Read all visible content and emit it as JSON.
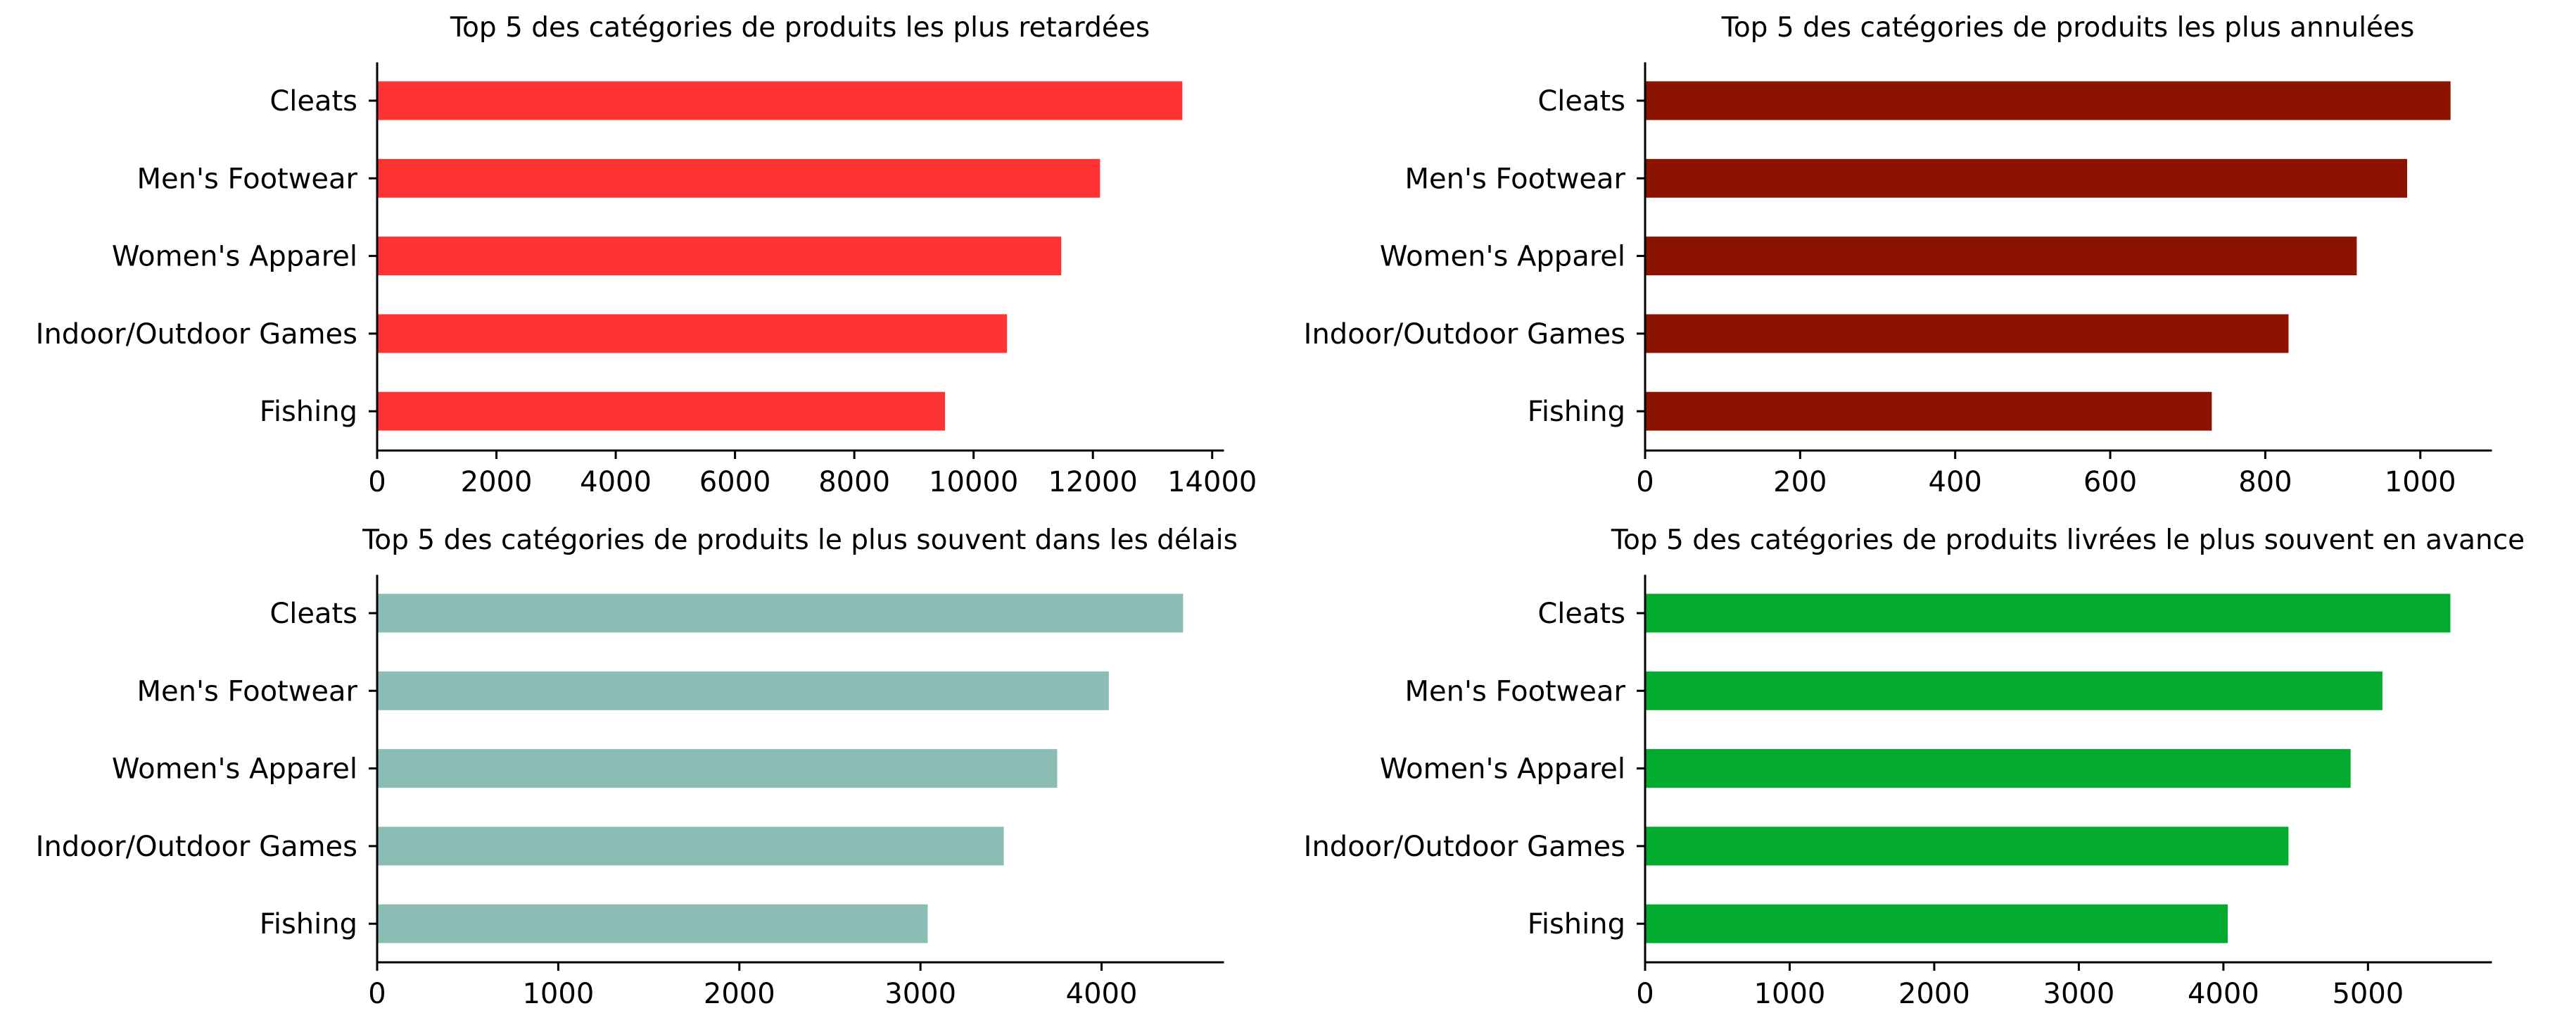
{
  "chart_data": [
    {
      "type": "bar",
      "orientation": "horizontal",
      "title": "Top 5 des catégories de produits les plus retardées",
      "categories": [
        "Cleats",
        "Men's Footwear",
        "Women's Apparel",
        "Indoor/Outdoor Games",
        "Fishing"
      ],
      "values": [
        13500,
        12120,
        11470,
        10560,
        9520
      ],
      "xlim": [
        0,
        14180
      ],
      "xticks": [
        0,
        2000,
        4000,
        6000,
        8000,
        10000,
        12000,
        14000
      ],
      "color": "#ff3333",
      "grid": false
    },
    {
      "type": "bar",
      "orientation": "horizontal",
      "title": "Top 5 des catégories de produits les plus annulées",
      "categories": [
        "Cleats",
        "Men's Footwear",
        "Women's Apparel",
        "Indoor/Outdoor Games",
        "Fishing"
      ],
      "values": [
        1039,
        983,
        918,
        830,
        731
      ],
      "xlim": [
        0,
        1091
      ],
      "xticks": [
        0,
        200,
        400,
        600,
        800,
        1000
      ],
      "color": "#8b1300",
      "grid": false
    },
    {
      "type": "bar",
      "orientation": "horizontal",
      "title": "Top 5 des catégories de produits le plus souvent dans les délais",
      "categories": [
        "Cleats",
        "Men's Footwear",
        "Women's Apparel",
        "Indoor/Outdoor Games",
        "Fishing"
      ],
      "values": [
        4450,
        4040,
        3755,
        3460,
        3040
      ],
      "xlim": [
        0,
        4670
      ],
      "xticks": [
        0,
        1000,
        2000,
        3000,
        4000
      ],
      "color": "#8bbdb5",
      "grid": false
    },
    {
      "type": "bar",
      "orientation": "horizontal",
      "title": "Top 5 des catégories de produits livrées le plus souvent en avance",
      "categories": [
        "Cleats",
        "Men's Footwear",
        "Women's Apparel",
        "Indoor/Outdoor Games",
        "Fishing"
      ],
      "values": [
        5570,
        5100,
        4880,
        4450,
        4030
      ],
      "xlim": [
        0,
        5850
      ],
      "xticks": [
        0,
        1000,
        2000,
        3000,
        4000,
        5000
      ],
      "color": "#02aa2e",
      "grid": false
    }
  ]
}
